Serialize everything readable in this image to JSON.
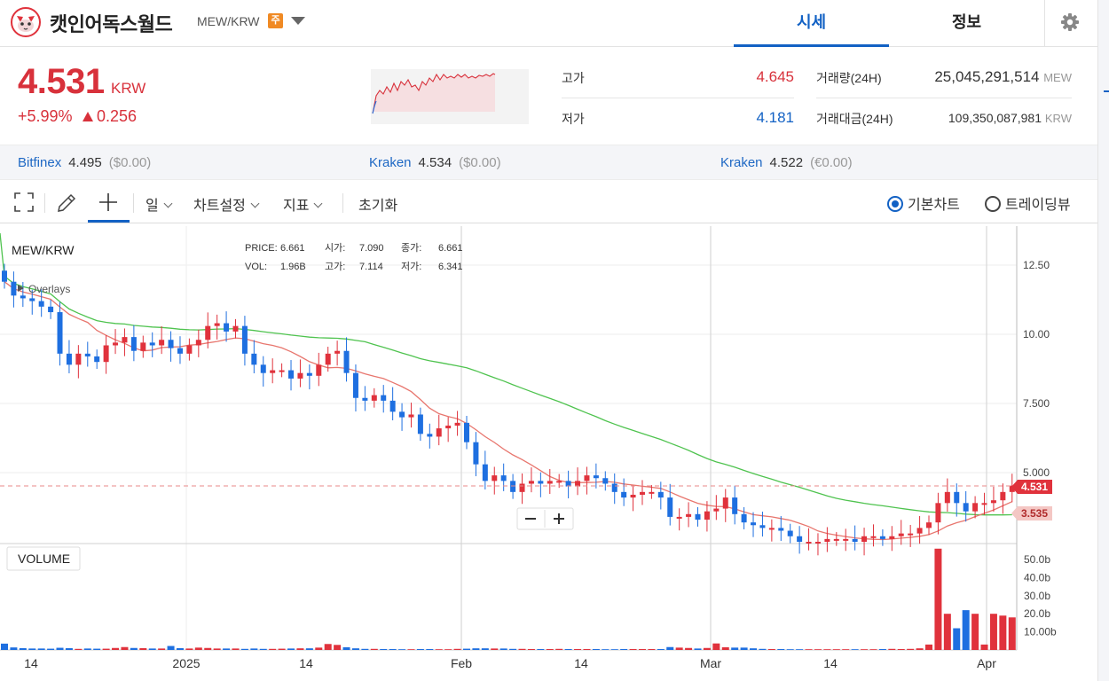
{
  "header": {
    "coin_name": "캣인어독스월드",
    "pair": "MEW/KRW",
    "warning_badge": "주",
    "tabs": [
      "시세",
      "정보"
    ]
  },
  "summary": {
    "price": "4.531",
    "unit": "KRW",
    "change_pct": "+5.99%",
    "change_abs": "0.256",
    "high_label": "고가",
    "high": "4.645",
    "low_label": "저가",
    "low": "4.181",
    "volume_label": "거래량(24H)",
    "volume": "25,045,291,514",
    "volume_unit": "MEW",
    "value_label": "거래대금(24H)",
    "value": "109,350,087,981",
    "value_unit": "KRW"
  },
  "exchanges": [
    {
      "name": "Bitfinex",
      "price": "4.495",
      "diff": "($0.00)"
    },
    {
      "name": "Kraken",
      "price": "4.534",
      "diff": "($0.00)"
    },
    {
      "name": "Kraken",
      "price": "4.522",
      "diff": "(€0.00)"
    }
  ],
  "toolbar": {
    "interval": "일",
    "chart_settings": "차트설정",
    "indicators": "지표",
    "reset": "초기화",
    "basic_chart": "기본차트",
    "tradingview": "트레이딩뷰"
  },
  "chart_info": {
    "symbol": "MEW/KRW",
    "overlays": "Overlays",
    "price_label": "PRICE:",
    "price": "6.661",
    "open_label": "시가:",
    "open": "7.090",
    "close_label": "종가:",
    "close": "6.661",
    "vol_label": "VOL:",
    "vol": "1.96B",
    "high_label": "고가:",
    "high": "7.114",
    "low_label": "저가:",
    "low": "6.341",
    "volume_panel": "VOLUME",
    "current_tag": "4.531",
    "ma_tag": "3.535"
  },
  "chart_data": {
    "type": "candlestick",
    "price_axis": [
      "12.50",
      "10.00",
      "7.500",
      "5.000"
    ],
    "price_axis_values": [
      12.5,
      10.0,
      7.5,
      5.0
    ],
    "volume_axis": [
      "50.0b",
      "40.0b",
      "30.0b",
      "20.0b",
      "10.00b"
    ],
    "x_ticks": [
      "14",
      "2025",
      "14",
      "Feb",
      "14",
      "Mar",
      "14",
      "Apr"
    ],
    "colors": {
      "up": "#e0323c",
      "down": "#1e6fe0",
      "ma_short": "#e8766e",
      "ma_long": "#4fc34f"
    },
    "closes": [
      11.9,
      11.4,
      11.3,
      11.2,
      11.0,
      10.8,
      9.3,
      8.9,
      9.3,
      9.2,
      9.0,
      9.6,
      9.7,
      9.9,
      9.4,
      9.7,
      9.6,
      9.8,
      9.5,
      9.3,
      9.6,
      9.8,
      10.3,
      10.4,
      10.1,
      10.3,
      9.3,
      8.9,
      8.6,
      8.7,
      8.7,
      8.4,
      8.6,
      8.5,
      8.9,
      9.3,
      9.4,
      8.6,
      7.7,
      7.6,
      7.8,
      7.6,
      7.2,
      7.0,
      7.1,
      6.4,
      6.3,
      6.6,
      6.7,
      6.8,
      6.1,
      5.3,
      4.7,
      4.9,
      4.7,
      4.3,
      4.6,
      4.7,
      4.6,
      4.7,
      4.7,
      4.5,
      4.7,
      4.9,
      4.8,
      4.6,
      4.3,
      4.1,
      4.2,
      4.3,
      4.3,
      4.1,
      3.4,
      3.4,
      3.5,
      3.3,
      3.6,
      3.7,
      4.1,
      3.5,
      3.2,
      3.1,
      3.0,
      3.0,
      2.9,
      2.7,
      2.5,
      2.5,
      2.5,
      2.6,
      2.6,
      2.6,
      2.5,
      2.7,
      2.7,
      2.6,
      2.7,
      2.8,
      2.8,
      3.0,
      3.2,
      3.9,
      4.3,
      3.9,
      3.6,
      3.9,
      3.9,
      4.0,
      4.3,
      4.531
    ],
    "volumes": [
      3.5,
      1.4,
      1.0,
      0.8,
      0.8,
      0.7,
      1.2,
      1.0,
      0.6,
      0.8,
      0.7,
      0.7,
      1.1,
      1.6,
      1.1,
      1.0,
      0.8,
      0.8,
      2.2,
      1.0,
      0.8,
      1.3,
      1.1,
      0.8,
      0.8,
      0.8,
      0.6,
      0.8,
      0.6,
      0.6,
      0.7,
      0.8,
      0.9,
      0.9,
      1.3,
      3.3,
      2.8,
      1.5,
      0.9,
      0.6,
      0.6,
      0.5,
      0.5,
      0.4,
      0.4,
      0.5,
      0.5,
      0.4,
      0.4,
      0.6,
      0.7,
      0.9,
      0.9,
      0.8,
      0.8,
      0.6,
      0.6,
      0.5,
      0.5,
      0.5,
      0.6,
      0.5,
      0.5,
      0.5,
      0.5,
      0.4,
      0.4,
      0.5,
      0.5,
      0.5,
      0.5,
      0.5,
      1.6,
      1.3,
      1.1,
      0.8,
      1.1,
      3.6,
      1.5,
      1.3,
      1.3,
      0.9,
      0.6,
      0.5,
      0.5,
      0.4,
      0.4,
      0.4,
      0.4,
      0.4,
      0.4,
      0.4,
      0.4,
      0.4,
      0.4,
      0.5,
      0.6,
      0.5,
      0.6,
      0.9,
      3.0,
      56.0,
      20.0,
      12.0,
      22.0,
      20.0,
      3.0,
      20.0,
      19.0,
      18.0
    ]
  }
}
